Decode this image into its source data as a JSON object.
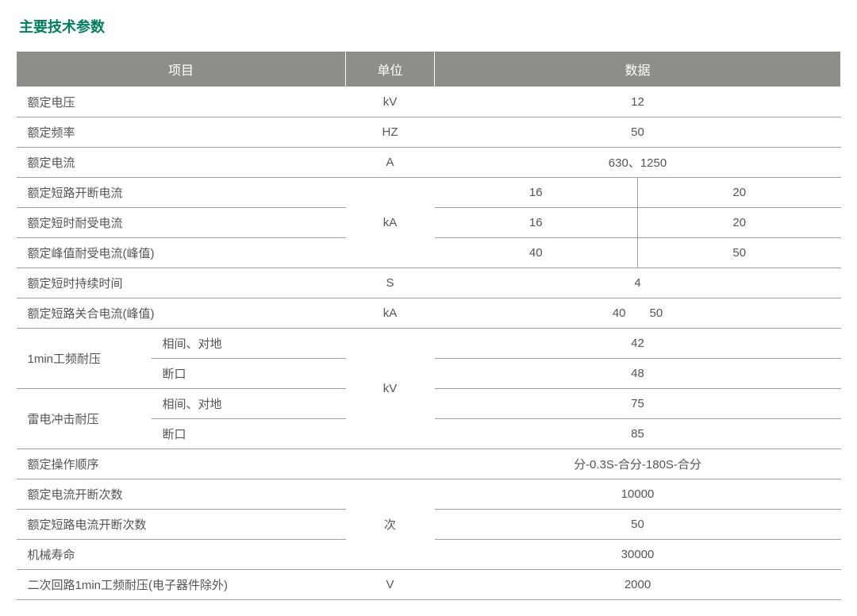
{
  "title": "主要技术参数",
  "headers": {
    "item": "项目",
    "unit": "单位",
    "data": "数据"
  },
  "rows": {
    "r1": {
      "label": "额定电压",
      "unit": "kV",
      "data": "12"
    },
    "r2": {
      "label": "额定频率",
      "unit": "HZ",
      "data": "50"
    },
    "r3": {
      "label": "额定电流",
      "unit": "A",
      "data": "630、1250"
    },
    "r4": {
      "label": "额定短路开断电流",
      "d1": "16",
      "d2": "20"
    },
    "r5": {
      "label": "额定短时耐受电流",
      "unit": "kA",
      "d1": "16",
      "d2": "20"
    },
    "r6": {
      "label": "额定峰值耐受电流(峰值)",
      "d1": "40",
      "d2": "50"
    },
    "r7": {
      "label": "额定短时持续时间",
      "unit": "S",
      "data": "4"
    },
    "r8": {
      "label": "额定短路关合电流(峰值)",
      "unit": "kA",
      "data": "40  50"
    },
    "r9": {
      "label": "1min工频耐压",
      "sub": "相间、对地",
      "data": "42"
    },
    "r10": {
      "sub": "断口",
      "unit": "kV",
      "data": "48"
    },
    "r11": {
      "label": "雷电冲击耐压",
      "sub": "相间、对地",
      "data": "75"
    },
    "r12": {
      "sub": "断口",
      "data": "85"
    },
    "r13": {
      "label": "额定操作顺序",
      "data": "分-0.3S-合分-180S-合分"
    },
    "r14": {
      "label": "额定电流开断次数",
      "data": "10000"
    },
    "r15": {
      "label": "额定短路电流开断次数",
      "unit": "次",
      "data": "50"
    },
    "r16": {
      "label": "机械寿命",
      "data": "30000"
    },
    "r17": {
      "label": "二次回路1min工频耐压(电子器件除外)",
      "unit": "V",
      "data": "2000"
    }
  }
}
